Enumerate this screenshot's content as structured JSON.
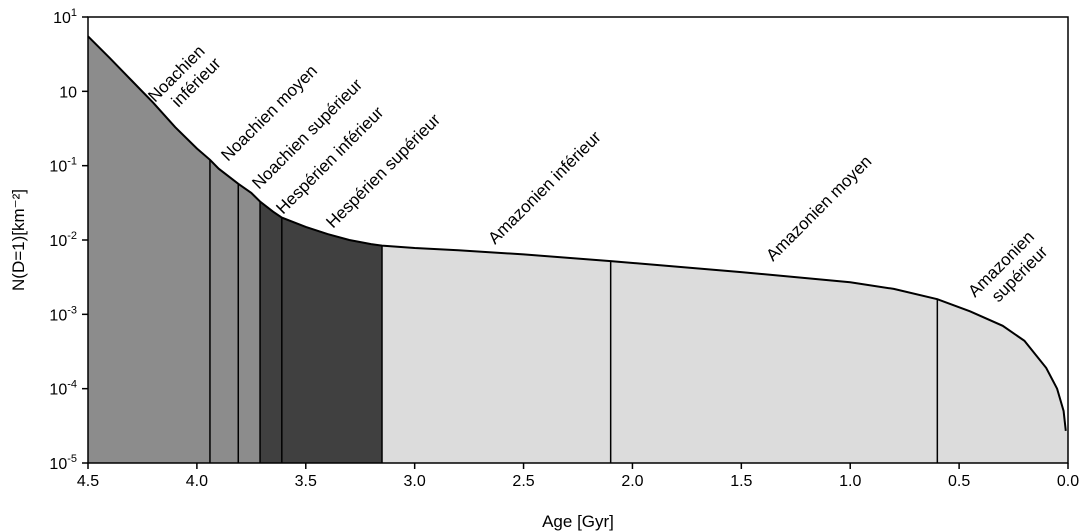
{
  "chart_data": {
    "type": "area",
    "title": "",
    "xlabel": "Age [Gyr]",
    "ylabel": "N(D=1)[km⁻²]",
    "x_reversed": true,
    "xlim": [
      4.5,
      0.0
    ],
    "ylim": [
      1e-05,
      10
    ],
    "y_scale": "log",
    "x_ticks": [
      "4.5",
      "4.0",
      "3.5",
      "3.0",
      "2.5",
      "2.0",
      "1.5",
      "1.0",
      "0.5",
      "0.0"
    ],
    "y_ticks": [
      {
        "base": "10",
        "exp": "1",
        "value": 10
      },
      {
        "base": "10",
        "exp": "",
        "value": 1
      },
      {
        "base": "10",
        "exp": "-1",
        "value": 0.1
      },
      {
        "base": "10",
        "exp": "-2",
        "value": 0.01
      },
      {
        "base": "10",
        "exp": "-3",
        "value": 0.001
      },
      {
        "base": "10",
        "exp": "-4",
        "value": 0.0001
      },
      {
        "base": "10",
        "exp": "-5",
        "value": 1e-05
      }
    ],
    "curve": {
      "x": [
        4.5,
        4.4,
        4.3,
        4.2,
        4.1,
        4.0,
        3.94,
        3.9,
        3.81,
        3.75,
        3.71,
        3.65,
        3.61,
        3.5,
        3.4,
        3.3,
        3.2,
        3.15,
        3.0,
        2.8,
        2.5,
        2.1,
        1.5,
        1.0,
        0.8,
        0.6,
        0.45,
        0.3,
        0.2,
        0.1,
        0.05,
        0.02,
        0.01
      ],
      "y": [
        5.5,
        2.8,
        1.4,
        0.7,
        0.33,
        0.17,
        0.12,
        0.091,
        0.057,
        0.043,
        0.033,
        0.024,
        0.02,
        0.015,
        0.012,
        0.01,
        0.0088,
        0.0084,
        0.0078,
        0.0073,
        0.0064,
        0.0052,
        0.0037,
        0.0027,
        0.0022,
        0.0016,
        0.0011,
        0.0007,
        0.00044,
        0.00019,
        0.0001,
        5e-05,
        2.7e-05
      ]
    },
    "periods": [
      {
        "name": "Noachien inférieur",
        "start": 4.5,
        "end": 3.94,
        "color": "#8c8c8c"
      },
      {
        "name": "Noachien moyen",
        "start": 3.94,
        "end": 3.81,
        "color": "#8c8c8c"
      },
      {
        "name": "Noachien supérieur",
        "start": 3.81,
        "end": 3.71,
        "color": "#8c8c8c"
      },
      {
        "name": "Hespérien inférieur",
        "start": 3.71,
        "end": 3.61,
        "color": "#404040"
      },
      {
        "name": "Hespérien supérieur",
        "start": 3.61,
        "end": 3.15,
        "color": "#404040"
      },
      {
        "name": "Amazonien inférieur",
        "start": 3.15,
        "end": 2.1,
        "color": "#dcdcdc"
      },
      {
        "name": "Amazonien moyen",
        "start": 2.1,
        "end": 0.6,
        "color": "#dcdcdc"
      },
      {
        "name": "Amazonien supérieur",
        "start": 0.6,
        "end": 0.0,
        "color": "#dcdcdc"
      }
    ],
    "labels": [
      {
        "lines": [
          "Noachien",
          "inférieur"
        ]
      },
      {
        "lines": [
          "Noachien moyen"
        ]
      },
      {
        "lines": [
          "Noachien supérieur"
        ]
      },
      {
        "lines": [
          "Hespérien inférieur"
        ]
      },
      {
        "lines": [
          "Hespérien supérieur"
        ]
      },
      {
        "lines": [
          "Amazonien inférieur"
        ]
      },
      {
        "lines": [
          "Amazonien moyen"
        ]
      },
      {
        "lines": [
          "Amazonien",
          "supérieur"
        ]
      }
    ],
    "grid": false,
    "legend": "none"
  }
}
